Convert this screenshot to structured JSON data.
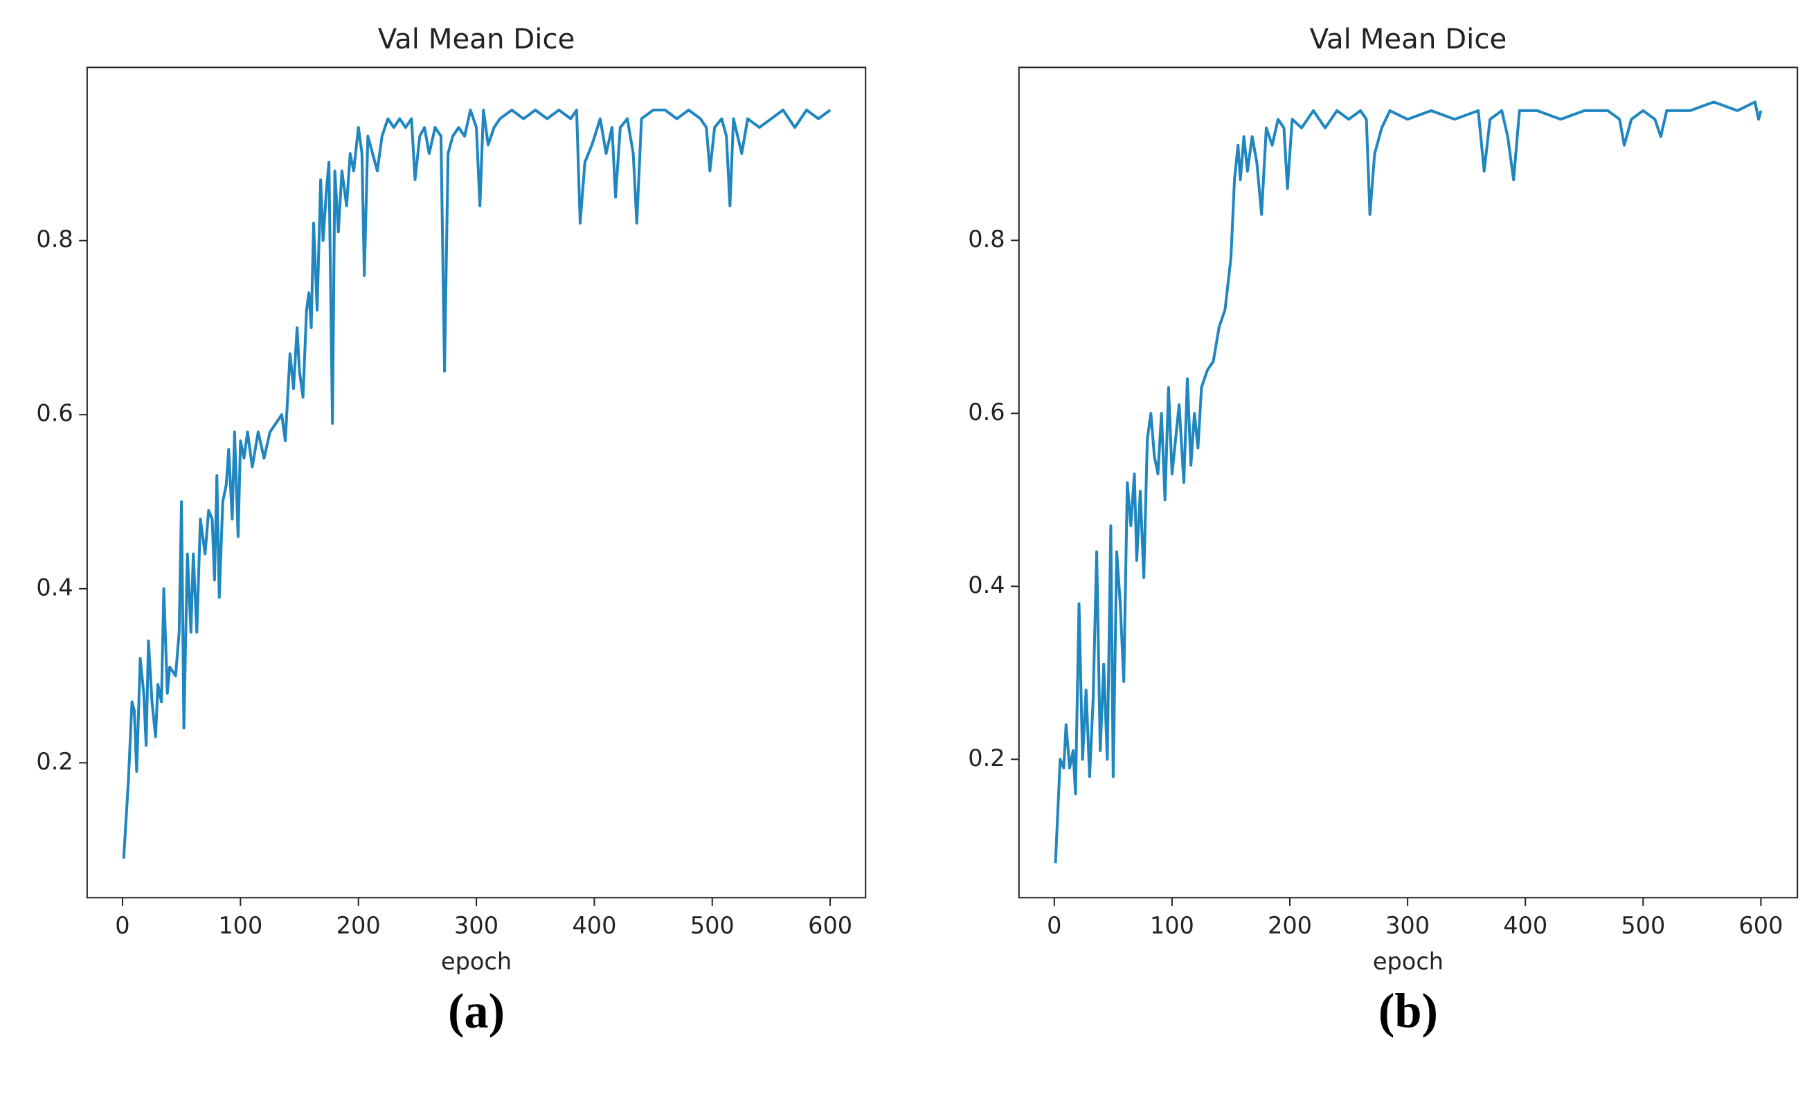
{
  "chart_data": [
    {
      "type": "line",
      "title": "Val Mean Dice",
      "xlabel": "epoch",
      "caption": "(a)",
      "color": "#1f86bf",
      "xlim": [
        -30,
        630
      ],
      "ylim": [
        0.045,
        0.999
      ],
      "xticks": [
        0,
        100,
        200,
        300,
        400,
        500,
        600
      ],
      "yticks": [
        0.2,
        0.4,
        0.6,
        0.8
      ],
      "x": [
        1,
        5,
        8,
        10,
        12,
        15,
        18,
        20,
        22,
        25,
        28,
        30,
        33,
        35,
        38,
        40,
        45,
        48,
        50,
        52,
        55,
        58,
        60,
        63,
        66,
        70,
        73,
        76,
        78,
        80,
        82,
        85,
        88,
        90,
        93,
        95,
        98,
        100,
        103,
        106,
        110,
        115,
        120,
        125,
        130,
        135,
        138,
        142,
        145,
        148,
        150,
        153,
        156,
        158,
        160,
        162,
        165,
        168,
        170,
        173,
        175,
        178,
        180,
        183,
        186,
        190,
        193,
        196,
        200,
        203,
        205,
        208,
        212,
        216,
        220,
        225,
        230,
        235,
        240,
        245,
        248,
        252,
        256,
        260,
        265,
        270,
        273,
        276,
        280,
        285,
        290,
        295,
        300,
        303,
        306,
        310,
        315,
        320,
        330,
        340,
        350,
        360,
        370,
        380,
        385,
        388,
        392,
        398,
        405,
        410,
        415,
        418,
        422,
        428,
        433,
        436,
        440,
        450,
        460,
        470,
        480,
        490,
        495,
        498,
        502,
        508,
        512,
        515,
        518,
        525,
        530,
        540,
        550,
        560,
        570,
        580,
        590,
        600
      ],
      "values": [
        0.09,
        0.18,
        0.27,
        0.26,
        0.19,
        0.32,
        0.28,
        0.22,
        0.34,
        0.27,
        0.23,
        0.29,
        0.27,
        0.4,
        0.28,
        0.31,
        0.3,
        0.35,
        0.5,
        0.24,
        0.44,
        0.35,
        0.44,
        0.35,
        0.48,
        0.44,
        0.49,
        0.48,
        0.41,
        0.53,
        0.39,
        0.5,
        0.52,
        0.56,
        0.48,
        0.58,
        0.46,
        0.57,
        0.55,
        0.58,
        0.54,
        0.58,
        0.55,
        0.58,
        0.59,
        0.6,
        0.57,
        0.67,
        0.63,
        0.7,
        0.65,
        0.62,
        0.72,
        0.74,
        0.7,
        0.82,
        0.72,
        0.87,
        0.8,
        0.86,
        0.89,
        0.59,
        0.88,
        0.81,
        0.88,
        0.84,
        0.9,
        0.88,
        0.93,
        0.9,
        0.76,
        0.92,
        0.9,
        0.88,
        0.92,
        0.94,
        0.93,
        0.94,
        0.93,
        0.94,
        0.87,
        0.92,
        0.93,
        0.9,
        0.93,
        0.92,
        0.65,
        0.9,
        0.92,
        0.93,
        0.92,
        0.95,
        0.93,
        0.84,
        0.95,
        0.91,
        0.93,
        0.94,
        0.95,
        0.94,
        0.95,
        0.94,
        0.95,
        0.94,
        0.95,
        0.82,
        0.89,
        0.91,
        0.94,
        0.9,
        0.93,
        0.85,
        0.93,
        0.94,
        0.9,
        0.82,
        0.94,
        0.95,
        0.95,
        0.94,
        0.95,
        0.94,
        0.93,
        0.88,
        0.93,
        0.94,
        0.92,
        0.84,
        0.94,
        0.9,
        0.94,
        0.93,
        0.94,
        0.95,
        0.93,
        0.95,
        0.94,
        0.95
      ]
    },
    {
      "type": "line",
      "title": "Val Mean Dice",
      "xlabel": "epoch",
      "caption": "(b)",
      "color": "#1f86bf",
      "xlim": [
        -30,
        631
      ],
      "ylim": [
        0.04,
        1.0
      ],
      "xticks": [
        0,
        100,
        200,
        300,
        400,
        500,
        600
      ],
      "yticks": [
        0.2,
        0.4,
        0.6,
        0.8
      ],
      "x": [
        1,
        5,
        8,
        10,
        13,
        16,
        18,
        21,
        24,
        27,
        30,
        33,
        36,
        39,
        42,
        45,
        48,
        50,
        53,
        56,
        59,
        62,
        65,
        68,
        70,
        73,
        76,
        79,
        82,
        85,
        88,
        91,
        94,
        97,
        100,
        103,
        106,
        110,
        113,
        116,
        119,
        122,
        125,
        130,
        135,
        140,
        145,
        150,
        153,
        156,
        158,
        161,
        164,
        168,
        172,
        176,
        180,
        185,
        190,
        195,
        198,
        202,
        210,
        220,
        230,
        240,
        250,
        260,
        265,
        268,
        272,
        278,
        285,
        300,
        320,
        340,
        360,
        365,
        370,
        380,
        385,
        390,
        395,
        410,
        430,
        450,
        470,
        480,
        484,
        490,
        500,
        510,
        515,
        520,
        540,
        560,
        580,
        595,
        598,
        600
      ],
      "values": [
        0.08,
        0.2,
        0.19,
        0.24,
        0.19,
        0.21,
        0.16,
        0.38,
        0.2,
        0.28,
        0.18,
        0.27,
        0.44,
        0.21,
        0.31,
        0.2,
        0.47,
        0.18,
        0.44,
        0.38,
        0.29,
        0.52,
        0.47,
        0.53,
        0.43,
        0.51,
        0.41,
        0.57,
        0.6,
        0.55,
        0.53,
        0.6,
        0.5,
        0.63,
        0.53,
        0.57,
        0.61,
        0.52,
        0.64,
        0.54,
        0.6,
        0.56,
        0.63,
        0.65,
        0.66,
        0.7,
        0.72,
        0.78,
        0.87,
        0.91,
        0.87,
        0.92,
        0.88,
        0.92,
        0.89,
        0.83,
        0.93,
        0.91,
        0.94,
        0.93,
        0.86,
        0.94,
        0.93,
        0.95,
        0.93,
        0.95,
        0.94,
        0.95,
        0.94,
        0.83,
        0.9,
        0.93,
        0.95,
        0.94,
        0.95,
        0.94,
        0.95,
        0.88,
        0.94,
        0.95,
        0.92,
        0.87,
        0.95,
        0.95,
        0.94,
        0.95,
        0.95,
        0.94,
        0.91,
        0.94,
        0.95,
        0.94,
        0.92,
        0.95,
        0.95,
        0.96,
        0.95,
        0.96,
        0.94,
        0.95
      ]
    }
  ]
}
